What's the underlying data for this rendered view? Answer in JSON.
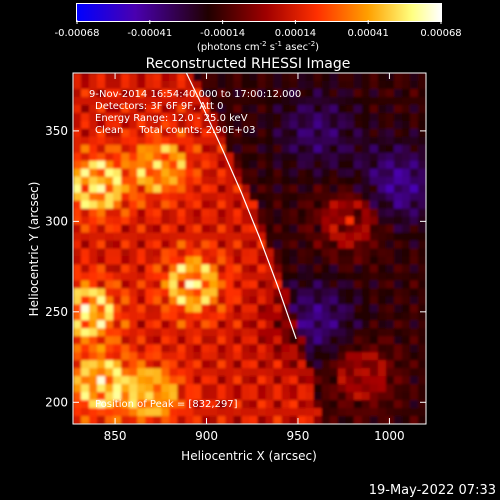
{
  "colorbar": {
    "ticks": [
      "-0.00068",
      "-0.00041",
      "-0.00014",
      "0.00014",
      "0.00041",
      "0.00068"
    ],
    "unit_main": "(photons cm",
    "unit_sup1": "-2",
    "unit_mid": " s",
    "unit_sup2": "-1",
    "unit_end": " asec",
    "unit_sup3": "-2",
    "unit_close": ")"
  },
  "chart_data": {
    "type": "heatmap",
    "title": "Reconstructed RHESSI Image",
    "xlabel": "Heliocentric X (arcsec)",
    "ylabel": "Heliocentric Y (arcsec)",
    "xlim": [
      827,
      1020
    ],
    "ylim": [
      188,
      382
    ],
    "x_ticks": [
      850,
      900,
      950,
      1000
    ],
    "y_ticks": [
      200,
      250,
      300,
      350
    ],
    "colorbar_range": [
      -0.00068,
      0.00068
    ],
    "colormap": [
      "#0000ff",
      "#4a00b0",
      "#200000",
      "#a00000",
      "#ff3000",
      "#ffa000",
      "#ffff80",
      "#ffffff"
    ],
    "limb_curve": {
      "x": [
        889,
        899,
        909,
        919,
        929,
        939,
        949
      ],
      "y": [
        382,
        361,
        339,
        316,
        291,
        264,
        235
      ]
    },
    "peak_position": [
      832,
      297
    ],
    "annotations": [
      "9-Nov-2014 16:54:40.000 to 17:00:12.000",
      "Detectors: 3F 6F 9F, Att 0",
      "Energy Range: 12.0 - 25.0 keV",
      "Clean     Total counts: 2.90E+03",
      "Position of Peak = [832,297]"
    ],
    "bright_regions": [
      {
        "x": 840,
        "y": 320,
        "level": 0.95
      },
      {
        "x": 835,
        "y": 250,
        "level": 0.95
      },
      {
        "x": 842,
        "y": 210,
        "level": 0.9
      },
      {
        "x": 892,
        "y": 265,
        "level": 0.85
      },
      {
        "x": 978,
        "y": 300,
        "level": 0.9
      },
      {
        "x": 985,
        "y": 215,
        "level": 0.85
      },
      {
        "x": 875,
        "y": 330,
        "level": 0.7
      },
      {
        "x": 870,
        "y": 205,
        "level": 0.75
      }
    ],
    "negative_regions": [
      {
        "x": 1005,
        "y": 320,
        "level": 0.7
      },
      {
        "x": 960,
        "y": 245,
        "level": 0.6
      },
      {
        "x": 960,
        "y": 350,
        "level": 0.5
      }
    ]
  },
  "footer": {
    "timestamp": "19-May-2022 07:33"
  }
}
